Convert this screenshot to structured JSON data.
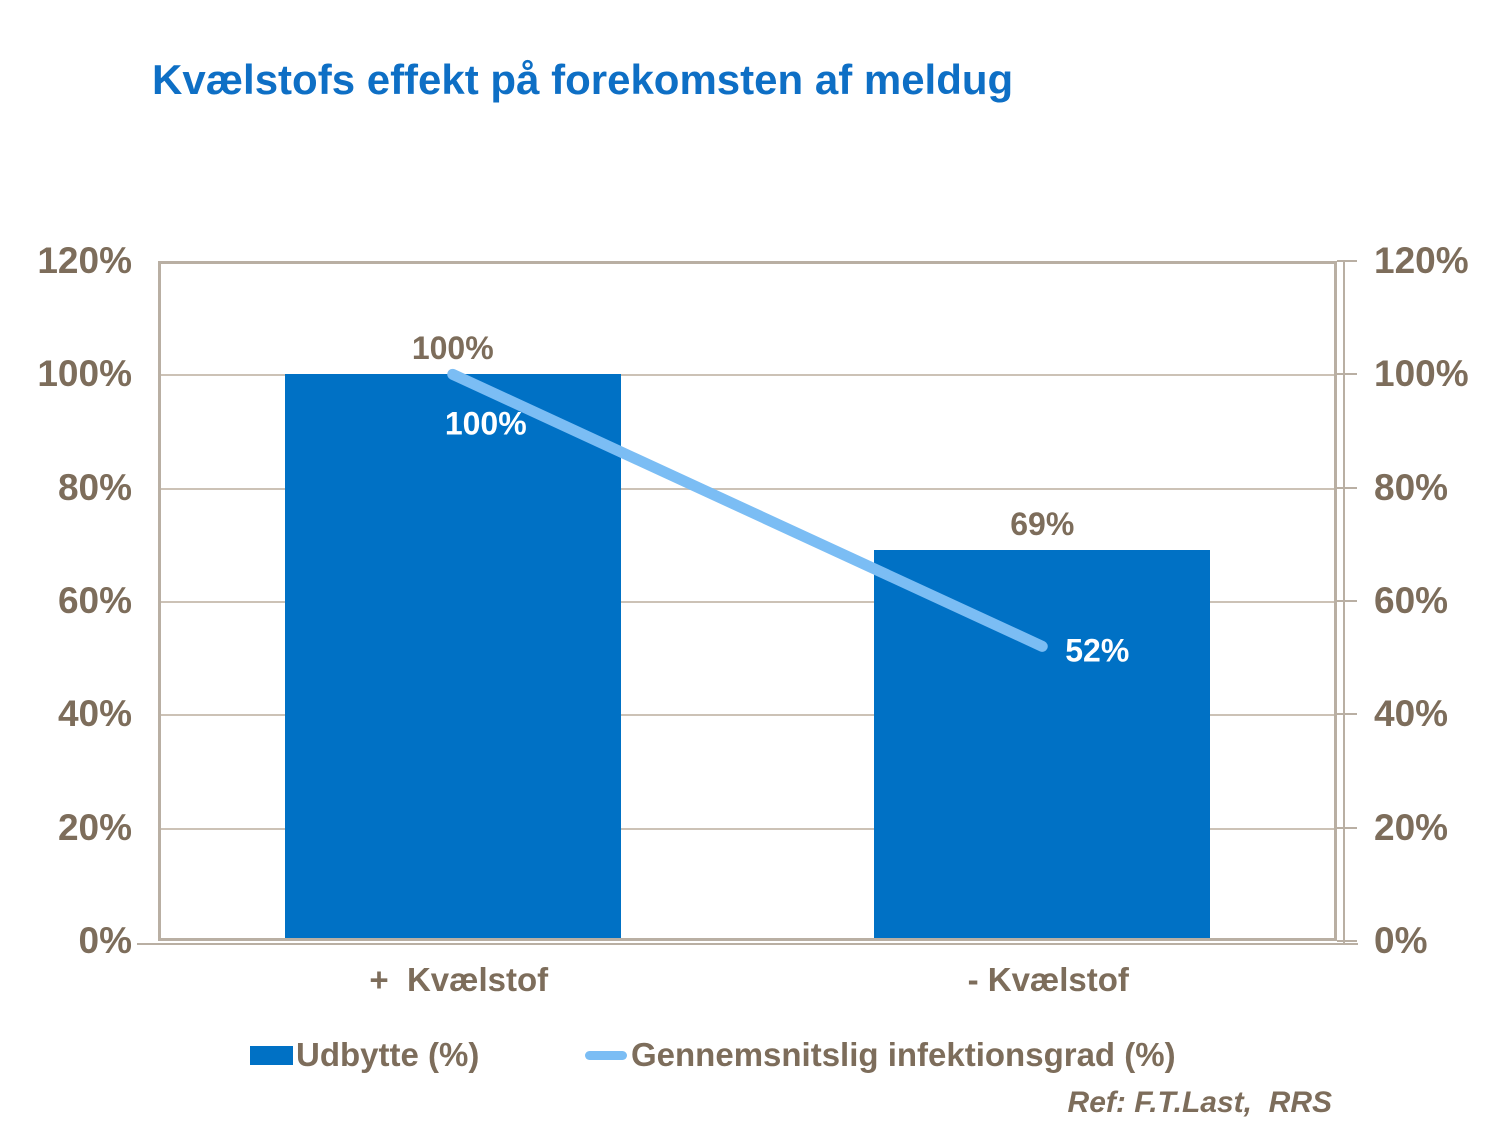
{
  "title": "Kvælstofs effekt på forekomsten af meldug",
  "reference": "Ref: F.T.Last,  RRS",
  "colors": {
    "title_text": "#0E6FC5",
    "bar_fill": "#0071C5",
    "line_stroke": "#7BBDF4",
    "axis_text": "#7D6D5B",
    "plot_border": "#B9AFA3",
    "gridline": "#CCC2B6",
    "label_on_bar": "#FFFFFF"
  },
  "chart_data": {
    "type": "bar",
    "subtype": "bar-with-line-overlay",
    "title": "Kvælstofs effekt på forekomsten af meldug",
    "categories": [
      "+  Kvælstof",
      "- Kvælstof"
    ],
    "series": [
      {
        "name": "Udbytte (%)",
        "type": "bar",
        "values": [
          100,
          69
        ],
        "labels": [
          "100%",
          "69%"
        ],
        "color": "#0071C5"
      },
      {
        "name": "Gennemsnitslig infektionsgrad (%)",
        "type": "line",
        "values": [
          100,
          52
        ],
        "labels": [
          "100%",
          "52%"
        ],
        "color": "#7BBDF4"
      }
    ],
    "ylim": [
      0,
      120
    ],
    "y_tick_step": 20,
    "y_tick_labels": [
      "0%",
      "20%",
      "40%",
      "60%",
      "80%",
      "100%",
      "120%"
    ],
    "y_axis_sides": "both",
    "grid": true,
    "legend_position": "bottom"
  }
}
